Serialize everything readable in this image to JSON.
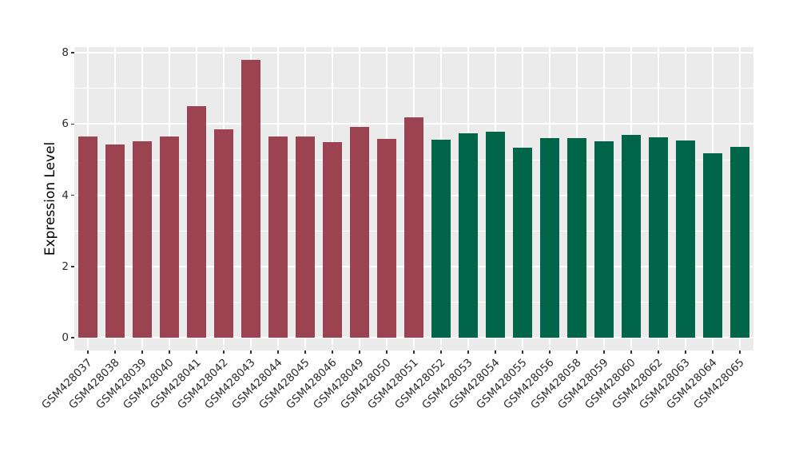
{
  "chart_data": {
    "type": "bar",
    "title": "",
    "ylabel": "Expression Level",
    "xlabel": "",
    "ylim": [
      0,
      8.2
    ],
    "yticks": [
      0,
      2,
      4,
      6,
      8
    ],
    "yticks_minor": [
      1,
      3,
      5,
      7
    ],
    "grid": true,
    "legend": false,
    "categories": [
      "GSM428037",
      "GSM428038",
      "GSM428039",
      "GSM428040",
      "GSM428041",
      "GSM428042",
      "GSM428043",
      "GSM428044",
      "GSM428045",
      "GSM428046",
      "GSM428049",
      "GSM428050",
      "GSM428051",
      "GSM428052",
      "GSM428053",
      "GSM428054",
      "GSM428055",
      "GSM428056",
      "GSM428058",
      "GSM428059",
      "GSM428060",
      "GSM428062",
      "GSM428063",
      "GSM428064",
      "GSM428065"
    ],
    "values": [
      5.65,
      5.42,
      5.52,
      5.65,
      6.5,
      5.85,
      7.8,
      5.65,
      5.65,
      5.5,
      5.92,
      5.58,
      6.18,
      5.55,
      5.75,
      5.78,
      5.33,
      5.6,
      5.6,
      5.52,
      5.7,
      5.62,
      5.53,
      5.18,
      5.37
    ],
    "bar_colors": [
      "#9B4351",
      "#9B4351",
      "#9B4351",
      "#9B4351",
      "#9B4351",
      "#9B4351",
      "#9B4351",
      "#9B4351",
      "#9B4351",
      "#9B4351",
      "#9B4351",
      "#9B4351",
      "#9B4351",
      "#016649",
      "#016649",
      "#016649",
      "#016649",
      "#016649",
      "#016649",
      "#016649",
      "#016649",
      "#016649",
      "#016649",
      "#016649",
      "#016649"
    ]
  },
  "colors": {
    "panel_background": "#EBEBEB",
    "gridline": "#FFFFFF",
    "bar_red": "#9B4351",
    "bar_green": "#016649",
    "tick_mark": "#333333",
    "tick_text": "#2B2B2B",
    "axis_title_text": "#000000",
    "figure_background": "#FFFFFF"
  }
}
